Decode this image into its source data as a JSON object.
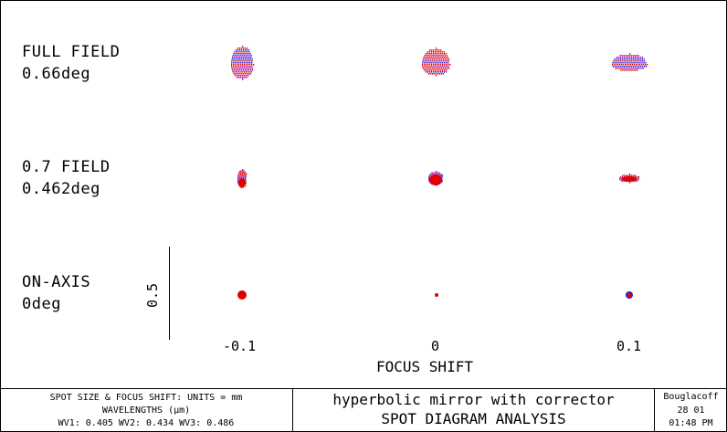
{
  "rows": [
    {
      "name": "FULL FIELD",
      "angle": "0.66deg"
    },
    {
      "name": "0.7 FIELD",
      "angle": "0.462deg"
    },
    {
      "name": "ON-AXIS",
      "angle": "0deg"
    }
  ],
  "focus_shifts": [
    "-0.1",
    "0",
    "0.1"
  ],
  "x_axis_label": "FOCUS SHIFT",
  "scale_bar_label": "0.5",
  "footer": {
    "units": "SPOT SIZE & FOCUS SHIFT: UNITS = mm",
    "wavelengths_label": "WAVELENGTHS (μm)",
    "wavelengths": "WV1: 0.405 WV2: 0.434 WV3: 0.486",
    "title": "hyperbolic mirror with corrector",
    "subtitle": "SPOT DIAGRAM ANALYSIS",
    "author": "Bouglacoff",
    "date": "28  01",
    "time": "01:48 PM"
  },
  "colors": {
    "wv1": "#e00000",
    "wv2": "#2020e0",
    "wv3": "#a000a0"
  }
}
